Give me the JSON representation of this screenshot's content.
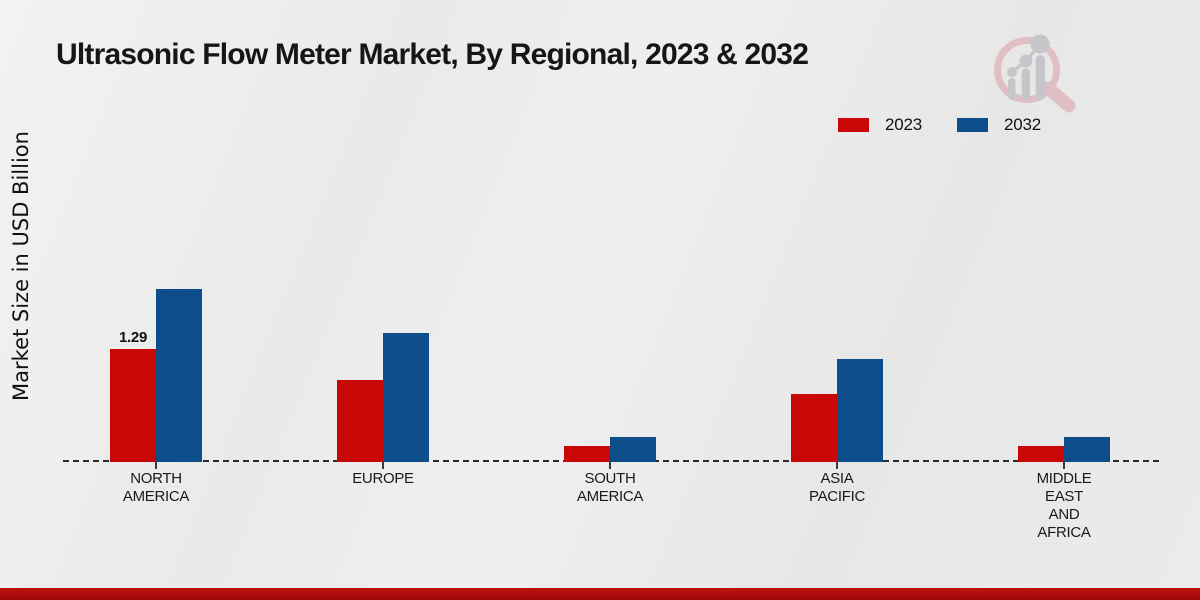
{
  "title": "Ultrasonic Flow Meter Market, By Regional, 2023 & 2032",
  "colors": {
    "series_2023": "#c90707",
    "series_2032": "#0d4d8a",
    "axis": "#2b2b2b",
    "footer_bar_top": "#c21010",
    "footer_bar_bottom": "#990808",
    "watermark_pink": "#dfbfc3",
    "watermark_gray": "#c5c6c9"
  },
  "icons": {
    "watermark": "magnifier-bar-chart-logo"
  },
  "legend": {
    "position": "top-right",
    "items": [
      {
        "label": "2023",
        "color": "#c90707"
      },
      {
        "label": "2032",
        "color": "#0d4d8a"
      }
    ]
  },
  "chart_data": {
    "type": "bar",
    "title": "Ultrasonic Flow Meter Market, By Regional, 2023 & 2032",
    "ylabel": "Market Size in USD Billion",
    "xlabel": "",
    "categories": [
      "NORTH\nAMERICA",
      "EUROPE",
      "SOUTH\nAMERICA",
      "ASIA\nPACIFIC",
      "MIDDLE\nEAST\nAND\nAFRICA"
    ],
    "series": [
      {
        "name": "2023",
        "color": "#c90707",
        "values": [
          1.29,
          0.94,
          0.18,
          0.78,
          0.18
        ]
      },
      {
        "name": "2032",
        "color": "#0d4d8a",
        "values": [
          1.97,
          1.47,
          0.29,
          1.18,
          0.29
        ]
      }
    ],
    "value_labels": [
      {
        "series": "2023",
        "category": "NORTH\nAMERICA",
        "text": "1.29"
      }
    ],
    "ylim": [
      0,
      2.2
    ],
    "grid": false,
    "axis_style": "dashed-baseline-only",
    "legend_position": "top-right"
  }
}
